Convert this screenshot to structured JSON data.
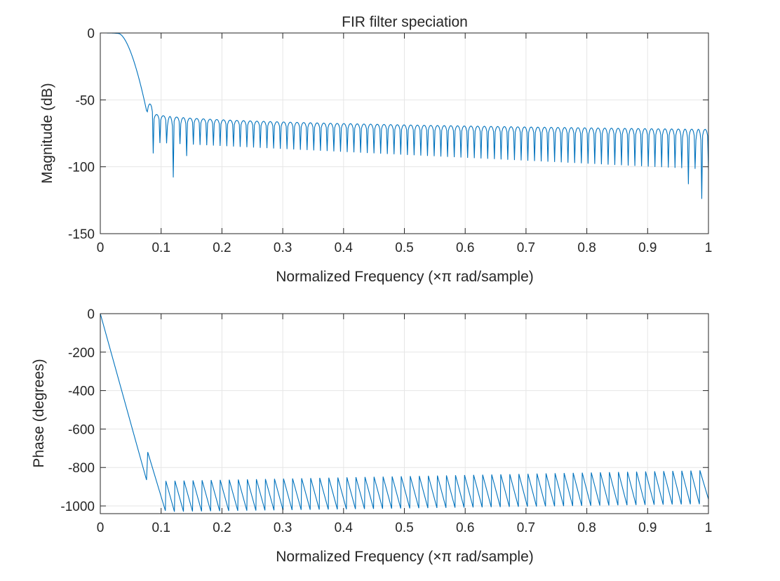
{
  "chart_data": [
    {
      "type": "line",
      "title": "FIR filter speciation",
      "xlabel": "Normalized Frequency  (×π rad/sample)",
      "ylabel": "Magnitude (dB)",
      "xlim": [
        0,
        1
      ],
      "ylim": [
        -150,
        0
      ],
      "xticks": [
        0,
        0.1,
        0.2,
        0.3,
        0.4,
        0.5,
        0.6,
        0.7,
        0.8,
        0.9,
        1
      ],
      "xtick_labels": [
        "0",
        "0.1",
        "0.2",
        "0.3",
        "0.4",
        "0.5",
        "0.6",
        "0.7",
        "0.8",
        "0.9",
        "1"
      ],
      "yticks": [
        -150,
        -100,
        -50,
        0
      ],
      "ytick_labels": [
        "-150",
        "-100",
        "-50",
        "0"
      ],
      "grid": true,
      "line_color": "#0072bd",
      "series": [
        {
          "name": "magnitude",
          "model": {
            "passband_end": 0.03,
            "transition_end": 0.076,
            "notch_dip": -58,
            "first_lobe_peak": -53,
            "lobe_count": 84,
            "lobe_start": 0.076,
            "lobe_end": 1.0,
            "lobe_peak_start": -58,
            "lobe_peak_end": -72,
            "null_depth_start": -82,
            "null_depth_end": -102,
            "deep_nulls": [
              [
                0.091,
                -90
              ],
              [
                0.124,
                -108
              ],
              [
                0.138,
                -92
              ],
              [
                0.988,
                -124
              ],
              [
                0.965,
                -113
              ]
            ]
          }
        }
      ]
    },
    {
      "type": "line",
      "title": "",
      "xlabel": "Normalized Frequency  (×π rad/sample)",
      "ylabel": "Phase (degrees)",
      "xlim": [
        0,
        1
      ],
      "ylim": [
        -1040,
        0
      ],
      "xticks": [
        0,
        0.1,
        0.2,
        0.3,
        0.4,
        0.5,
        0.6,
        0.7,
        0.8,
        0.9,
        1
      ],
      "xtick_labels": [
        "0",
        "0.1",
        "0.2",
        "0.3",
        "0.4",
        "0.5",
        "0.6",
        "0.7",
        "0.8",
        "0.9",
        "1"
      ],
      "yticks": [
        -1000,
        -800,
        -600,
        -400,
        -200,
        0
      ],
      "ytick_labels": [
        "-1000",
        "-800",
        "-600",
        "-400",
        "-200",
        "0"
      ],
      "grid": true,
      "line_color": "#0072bd",
      "series": [
        {
          "name": "phase",
          "model": {
            "segments": [
              [
                [
                  0,
                  0
                ],
                [
                  0.076,
                  -865
                ]
              ],
              [
                [
                  0.076,
                  -865
                ],
                [
                  0.078,
                  -720
                ]
              ],
              [
                [
                  0.078,
                  -720
                ],
                [
                  0.107,
                  -1025
                ]
              ]
            ],
            "saw_start": 0.107,
            "saw_end": 1.0,
            "saw_count": 60,
            "saw_top_start": -870,
            "saw_top_end": -815,
            "saw_bottom_start": -1030,
            "saw_bottom_end": -990,
            "end_value": -965
          }
        }
      ]
    }
  ]
}
